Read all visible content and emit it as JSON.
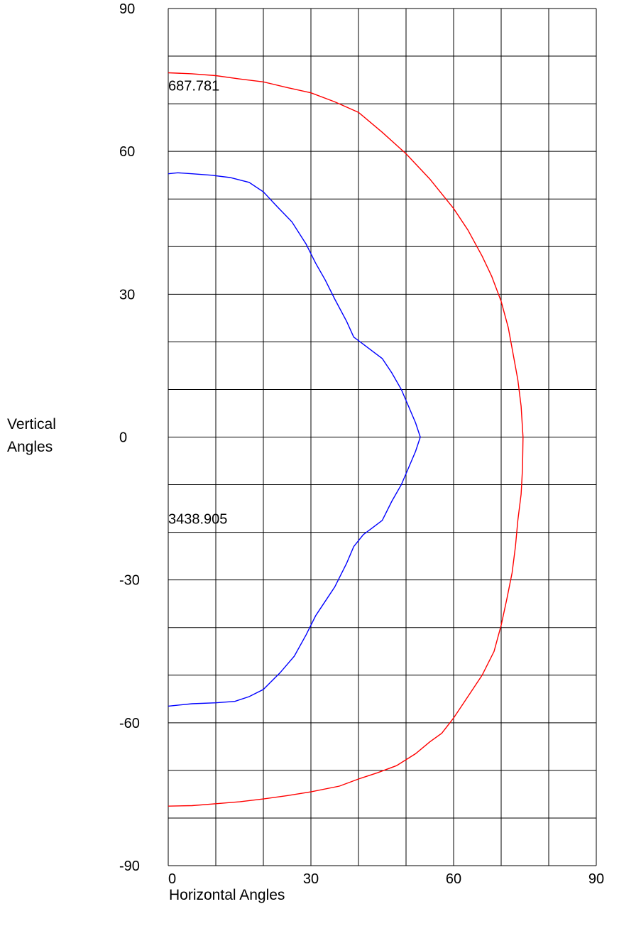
{
  "chart_data": {
    "type": "line",
    "xlabel": "Horizontal Angles",
    "ylabel_lines": [
      "Vertical",
      "Angles"
    ],
    "xlim": [
      0,
      90
    ],
    "ylim": [
      -90,
      90
    ],
    "xticks": [
      "0",
      "30",
      "60",
      "90"
    ],
    "yticks": [
      "90",
      "60",
      "30",
      "0",
      "-30",
      "-60",
      "-90"
    ],
    "grid": true,
    "annotations": [
      {
        "text": "687.781",
        "x": 0,
        "y": 74
      },
      {
        "text": "3438.905",
        "x": 0,
        "y": -17
      }
    ],
    "series": [
      {
        "color": "#ff0000",
        "points": [
          [
            0,
            76.5
          ],
          [
            5,
            76.3
          ],
          [
            10,
            75.9
          ],
          [
            15,
            75.2
          ],
          [
            20,
            74.6
          ],
          [
            25,
            73.4
          ],
          [
            30,
            72.3
          ],
          [
            35,
            70.4
          ],
          [
            40,
            68.2
          ],
          [
            45,
            64.0
          ],
          [
            50,
            59.5
          ],
          [
            55,
            54.2
          ],
          [
            60,
            48.0
          ],
          [
            63,
            43.5
          ],
          [
            66,
            38.0
          ],
          [
            68,
            33.8
          ],
          [
            70,
            28.5
          ],
          [
            71.5,
            23.0
          ],
          [
            72.5,
            17.5
          ],
          [
            73.5,
            12.0
          ],
          [
            74.2,
            6.5
          ],
          [
            74.6,
            0
          ],
          [
            74.5,
            -6.5
          ],
          [
            74.2,
            -12.0
          ],
          [
            73.5,
            -17.5
          ],
          [
            73,
            -23.0
          ],
          [
            72.3,
            -28.5
          ],
          [
            71.2,
            -34.0
          ],
          [
            70,
            -39.5
          ],
          [
            68.5,
            -45.0
          ],
          [
            66,
            -50.0
          ],
          [
            63,
            -54.5
          ],
          [
            60,
            -59.0
          ],
          [
            57.5,
            -62.2
          ],
          [
            55,
            -64.0
          ],
          [
            52,
            -66.5
          ],
          [
            48,
            -69.0
          ],
          [
            44,
            -70.5
          ],
          [
            40,
            -71.8
          ],
          [
            36,
            -73.3
          ],
          [
            30,
            -74.5
          ],
          [
            25,
            -75.3
          ],
          [
            20,
            -76.0
          ],
          [
            15,
            -76.6
          ],
          [
            10,
            -77.0
          ],
          [
            5,
            -77.4
          ],
          [
            0,
            -77.5
          ]
        ]
      },
      {
        "color": "#0000ff",
        "points": [
          [
            0,
            55.3
          ],
          [
            2,
            55.5
          ],
          [
            5,
            55.3
          ],
          [
            9,
            55.0
          ],
          [
            13,
            54.5
          ],
          [
            17,
            53.5
          ],
          [
            20,
            51.5
          ],
          [
            23,
            48.3
          ],
          [
            26,
            45.2
          ],
          [
            29,
            40.5
          ],
          [
            31,
            36.5
          ],
          [
            33,
            33.0
          ],
          [
            35,
            29.0
          ],
          [
            37.5,
            24.3
          ],
          [
            39,
            21.0
          ],
          [
            41,
            19.5
          ],
          [
            43,
            18.0
          ],
          [
            45,
            16.5
          ],
          [
            47,
            13.5
          ],
          [
            49,
            10.0
          ],
          [
            50.5,
            6.5
          ],
          [
            52,
            3.0
          ],
          [
            53,
            0
          ],
          [
            52,
            -3.0
          ],
          [
            50.5,
            -6.5
          ],
          [
            49,
            -10.0
          ],
          [
            47,
            -13.5
          ],
          [
            45,
            -17.5
          ],
          [
            43,
            -19.0
          ],
          [
            41,
            -20.5
          ],
          [
            39,
            -23.0
          ],
          [
            37.5,
            -26.5
          ],
          [
            35,
            -31.5
          ],
          [
            33,
            -34.5
          ],
          [
            31,
            -37.5
          ],
          [
            29,
            -41.5
          ],
          [
            26.5,
            -46.0
          ],
          [
            23.5,
            -49.5
          ],
          [
            20,
            -53.0
          ],
          [
            17,
            -54.5
          ],
          [
            14,
            -55.5
          ],
          [
            10,
            -55.8
          ],
          [
            5,
            -56.0
          ],
          [
            0,
            -56.5
          ]
        ]
      }
    ]
  }
}
